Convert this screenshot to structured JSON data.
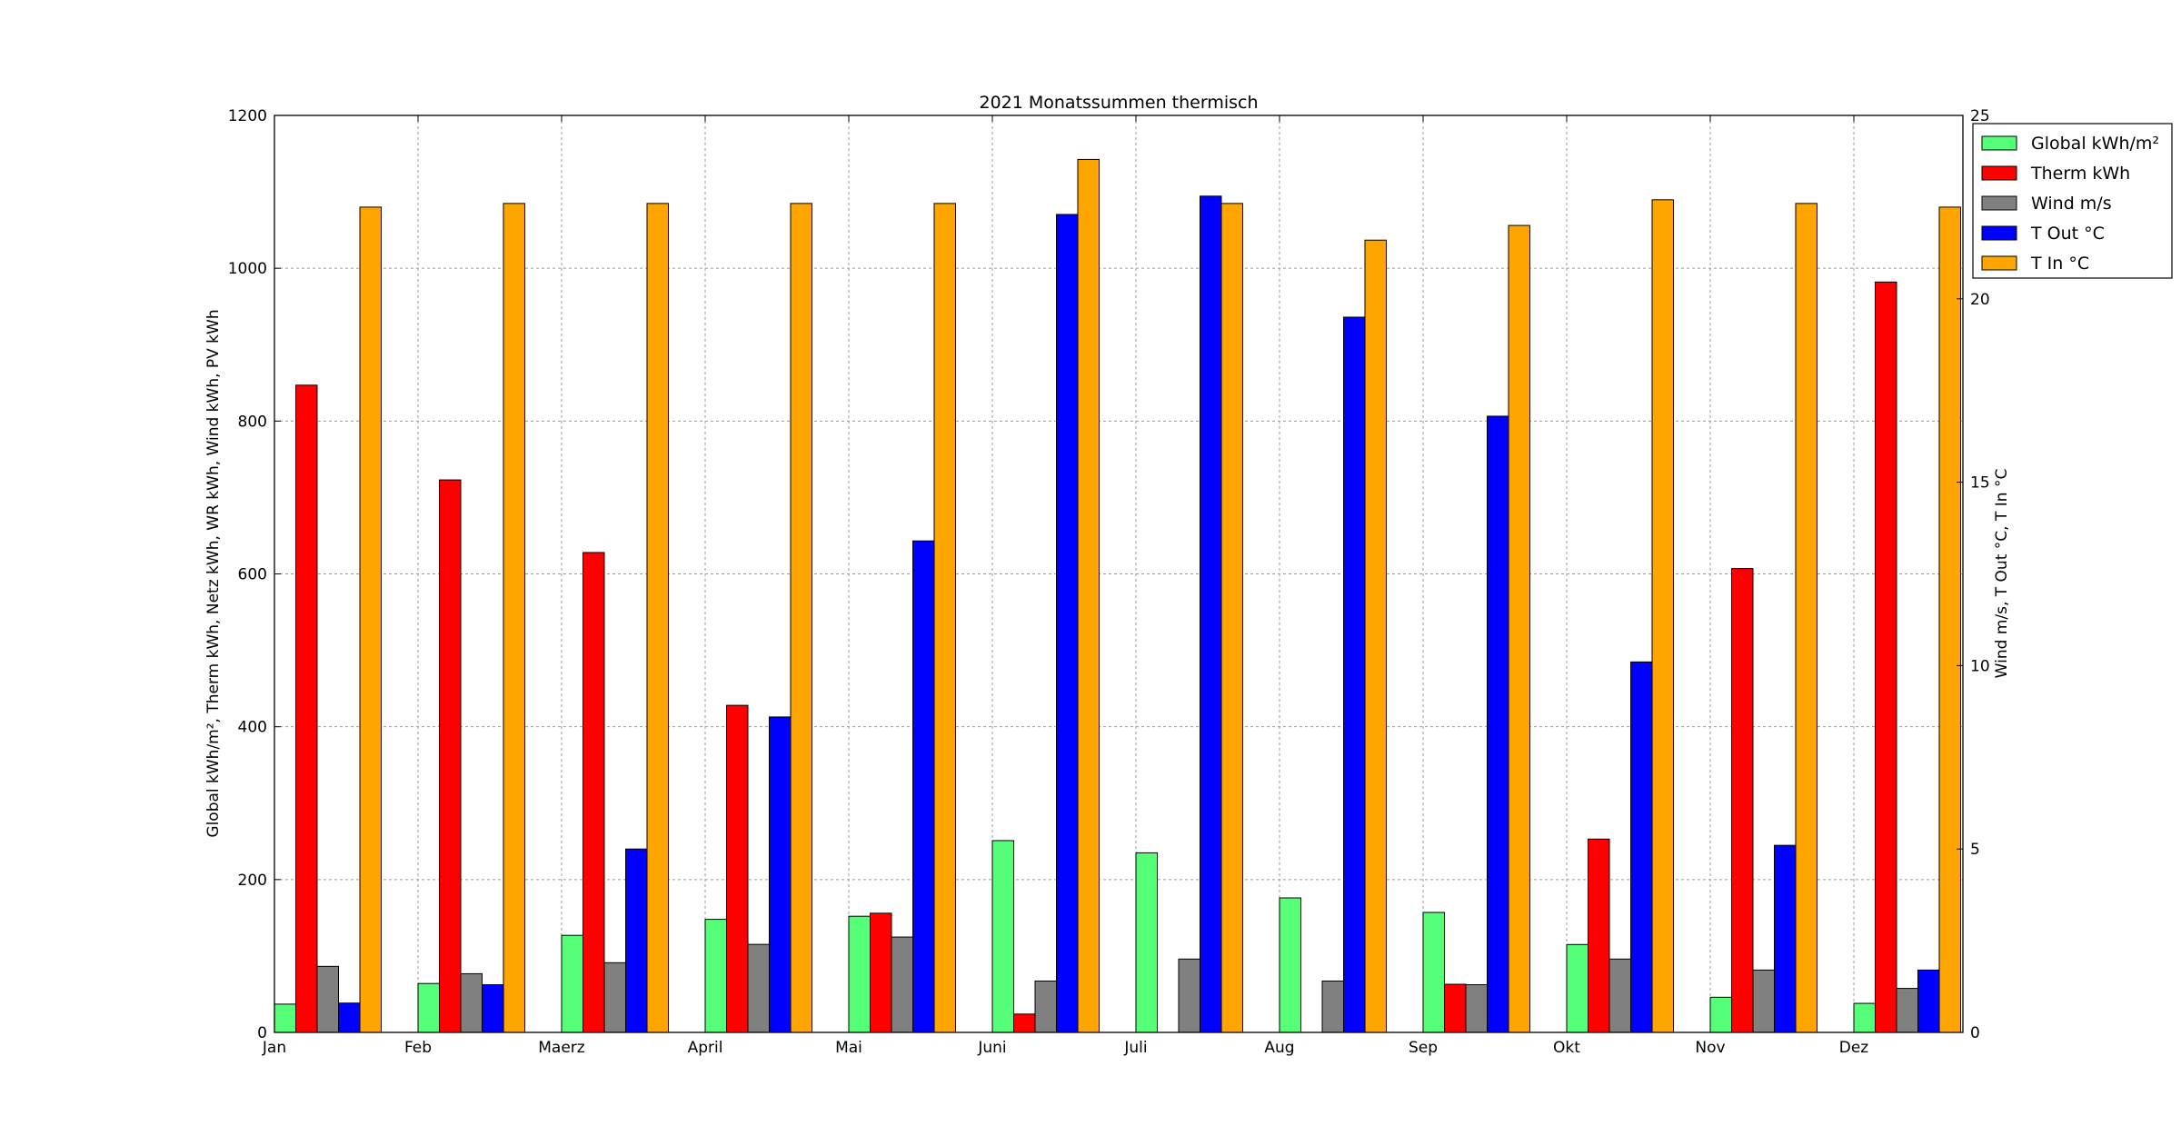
{
  "chart_data": {
    "type": "bar",
    "title": "2021 Monatssummen thermisch",
    "ylabel_left": "Global kWh/m², Therm kWh, Netz kWh, WR kWh, Wind kWh, PV kWh",
    "ylabel_right": "Wind m/s, T Out °C, T In °C",
    "categories": [
      "Jan",
      "Feb",
      "Maerz",
      "April",
      "Mai",
      "Juni",
      "Juli",
      "Aug",
      "Sep",
      "Okt",
      "Nov",
      "Dez"
    ],
    "ylim_left": [
      0,
      1200
    ],
    "ylim_right": [
      0,
      25
    ],
    "yticks_left": [
      0,
      200,
      400,
      600,
      800,
      1000,
      1200
    ],
    "yticks_right": [
      0,
      5,
      10,
      15,
      20,
      25
    ],
    "grid": true,
    "legend_position": "top-right",
    "series": [
      {
        "name": "Global kWh/m²",
        "axis": "left",
        "color": "#55ff77",
        "values": [
          37,
          64,
          127,
          148,
          152,
          251,
          235,
          176,
          157,
          115,
          46,
          38
        ]
      },
      {
        "name": "Therm kWh",
        "axis": "left",
        "color": "#ff0000",
        "values": [
          847,
          723,
          628,
          428,
          156,
          24,
          0,
          0,
          63,
          253,
          607,
          982
        ]
      },
      {
        "name": "Wind m/s",
        "axis": "right",
        "color": "#808080",
        "values": [
          1.8,
          1.6,
          1.9,
          2.4,
          2.6,
          1.4,
          2.0,
          1.4,
          1.3,
          2.0,
          1.7,
          1.2
        ]
      },
      {
        "name": "T Out °C",
        "axis": "right",
        "color": "#0000ff",
        "values": [
          0.8,
          1.3,
          5.0,
          8.6,
          13.4,
          22.3,
          22.8,
          19.5,
          16.8,
          10.1,
          5.1,
          1.7
        ]
      },
      {
        "name": "T In °C",
        "axis": "right",
        "color": "#ffa500",
        "values": [
          22.5,
          22.6,
          22.6,
          22.6,
          22.6,
          23.8,
          22.6,
          21.6,
          22.0,
          22.7,
          22.6,
          22.5
        ]
      }
    ]
  }
}
